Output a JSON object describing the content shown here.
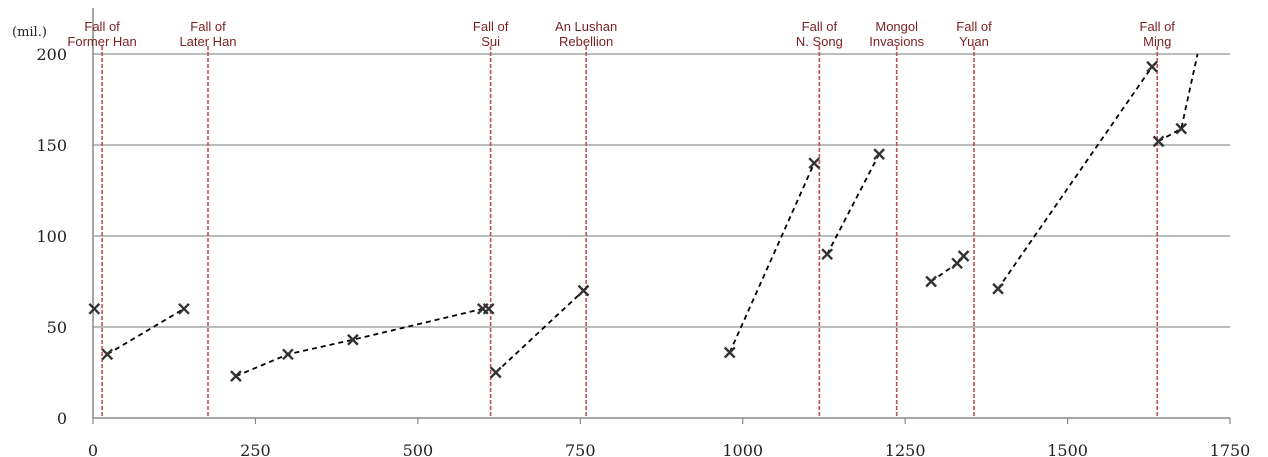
{
  "chart_data": {
    "type": "scatter",
    "title": "",
    "xlabel": "",
    "ylabel": "",
    "y_unit_label": "(mil.)",
    "xlim": [
      0,
      1750
    ],
    "ylim": [
      0,
      200
    ],
    "x_ticks": [
      0,
      250,
      500,
      750,
      1000,
      1250,
      1500,
      1750
    ],
    "y_ticks": [
      0,
      50,
      100,
      150,
      200
    ],
    "grid": "horizontal",
    "colors": {
      "gridline": "#a6a6a6",
      "event_line": "#c0504d",
      "event_text": "#7a1f1f",
      "series": "#000000",
      "marker": "#333333"
    },
    "points": [
      {
        "x": 2,
        "y": 60
      },
      {
        "x": 22,
        "y": 35
      },
      {
        "x": 140,
        "y": 60
      },
      {
        "x": 220,
        "y": 23
      },
      {
        "x": 300,
        "y": 35
      },
      {
        "x": 400,
        "y": 43
      },
      {
        "x": 600,
        "y": 60
      },
      {
        "x": 609,
        "y": 60
      },
      {
        "x": 620,
        "y": 25
      },
      {
        "x": 755,
        "y": 70
      },
      {
        "x": 980,
        "y": 36
      },
      {
        "x": 1110,
        "y": 140
      },
      {
        "x": 1130,
        "y": 90
      },
      {
        "x": 1210,
        "y": 145
      },
      {
        "x": 1290,
        "y": 75
      },
      {
        "x": 1330,
        "y": 85
      },
      {
        "x": 1340,
        "y": 89
      },
      {
        "x": 1393,
        "y": 71
      },
      {
        "x": 1630,
        "y": 193
      },
      {
        "x": 1640,
        "y": 152
      },
      {
        "x": 1675,
        "y": 159
      }
    ],
    "segments": [
      [
        [
          22,
          35
        ],
        [
          140,
          60
        ]
      ],
      [
        [
          220,
          23
        ],
        [
          300,
          35
        ],
        [
          400,
          43
        ],
        [
          600,
          60
        ]
      ],
      [
        [
          620,
          25
        ],
        [
          755,
          70
        ]
      ],
      [
        [
          980,
          36
        ],
        [
          1110,
          140
        ]
      ],
      [
        [
          1130,
          90
        ],
        [
          1210,
          145
        ]
      ],
      [
        [
          1290,
          75
        ],
        [
          1330,
          85
        ],
        [
          1340,
          89
        ]
      ],
      [
        [
          1393,
          71
        ],
        [
          1630,
          193
        ]
      ],
      [
        [
          1640,
          152
        ],
        [
          1675,
          159
        ],
        [
          1700,
          200
        ]
      ]
    ],
    "events": [
      {
        "x": 14,
        "lines": [
          "Fall of",
          "Former Han"
        ]
      },
      {
        "x": 177,
        "lines": [
          "Fall of",
          "Later Han"
        ]
      },
      {
        "x": 612,
        "lines": [
          "Fall of",
          "Sui"
        ]
      },
      {
        "x": 759,
        "lines": [
          "An Lushan",
          "Rebellion"
        ]
      },
      {
        "x": 1118,
        "lines": [
          "Fall of",
          "N. Song"
        ]
      },
      {
        "x": 1237,
        "lines": [
          "Mongol",
          "Invasions"
        ]
      },
      {
        "x": 1356,
        "lines": [
          "Fall of",
          "Yuan"
        ]
      },
      {
        "x": 1638,
        "lines": [
          "Fall of",
          "Ming"
        ]
      }
    ]
  }
}
